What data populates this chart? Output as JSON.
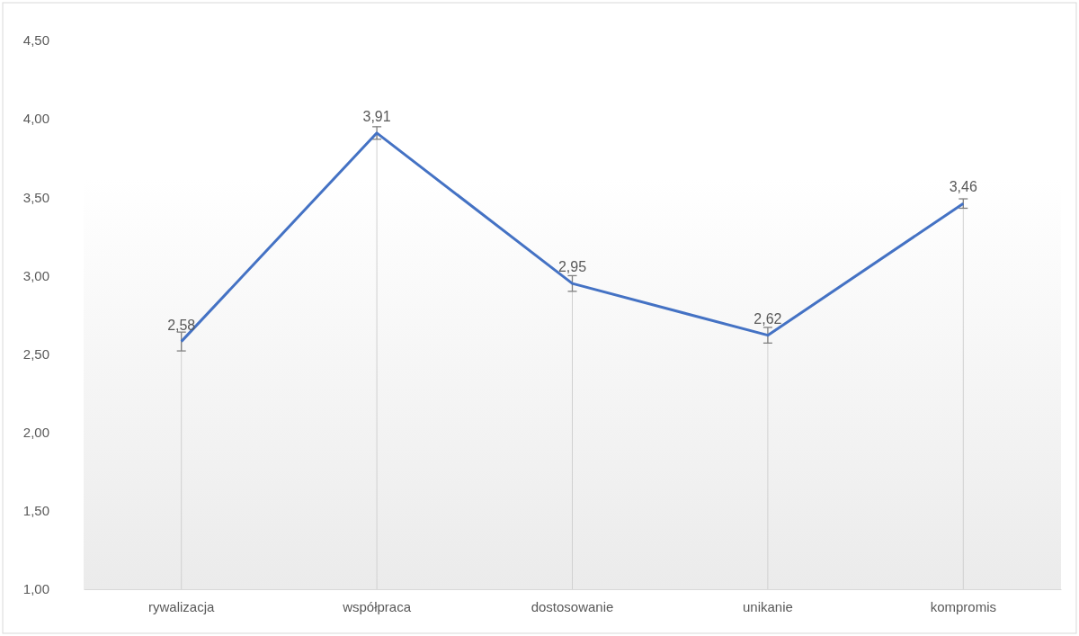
{
  "chart_data": {
    "type": "line",
    "categories": [
      "rywalizacja",
      "współpraca",
      "dostosowanie",
      "unikanie",
      "kompromis"
    ],
    "series": [
      {
        "color": "#4472c4",
        "values": [
          2.58,
          3.91,
          2.95,
          2.62,
          3.46
        ],
        "errors": [
          0.06,
          0.04,
          0.05,
          0.05,
          0.03
        ],
        "value_labels": [
          "2,58",
          "3,91",
          "2,95",
          "2,62",
          "3,46"
        ]
      }
    ],
    "ylim": [
      1,
      4.5
    ],
    "yticks": [
      {
        "value": 1,
        "label": "1,00"
      },
      {
        "value": 1.5,
        "label": "1,50"
      },
      {
        "value": 2,
        "label": "2,00"
      },
      {
        "value": 2.5,
        "label": "2,50"
      },
      {
        "value": 3,
        "label": "3,00"
      },
      {
        "value": 3.5,
        "label": "3,50"
      },
      {
        "value": 4,
        "label": "4,00"
      },
      {
        "value": 4.5,
        "label": "4,50"
      }
    ],
    "grid": "x",
    "marker": "none",
    "line_style": "solid"
  }
}
